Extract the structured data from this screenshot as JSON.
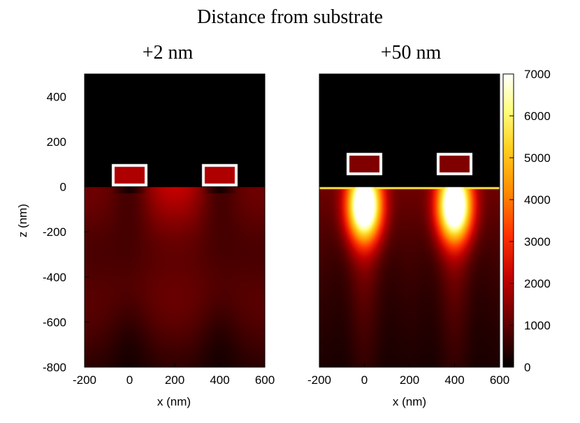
{
  "chart_data": {
    "type": "heatmap",
    "title": "Distance from substrate",
    "xlabel": "x (nm)",
    "ylabel": "z (nm)",
    "xlim": [
      -200,
      600
    ],
    "ylim": [
      -800,
      500
    ],
    "x_ticks": [
      -200,
      0,
      200,
      400,
      600
    ],
    "y_ticks": [
      400,
      200,
      0,
      -200,
      -400,
      -600,
      -800
    ],
    "colorbar": {
      "range": [
        0,
        7000
      ],
      "ticks": [
        7000,
        6000,
        5000,
        4000,
        3000,
        2000,
        1000,
        0
      ],
      "colormap": [
        "#000000",
        "#8b0000",
        "#ff2000",
        "#ff8c00",
        "#ffff40",
        "#ffffff"
      ]
    },
    "structures": {
      "rod_centers_x": [
        0,
        400
      ],
      "rod_width": 160,
      "substrate_z": 0
    },
    "panels": [
      {
        "label": "+2 nm",
        "gap_nm": 2,
        "rod_bottom": 2,
        "rod_top": 102,
        "peak_value": 2600
      },
      {
        "label": "+50 nm",
        "gap_nm": 50,
        "rod_bottom": 50,
        "rod_top": 150,
        "peak_value": 6900
      }
    ]
  }
}
